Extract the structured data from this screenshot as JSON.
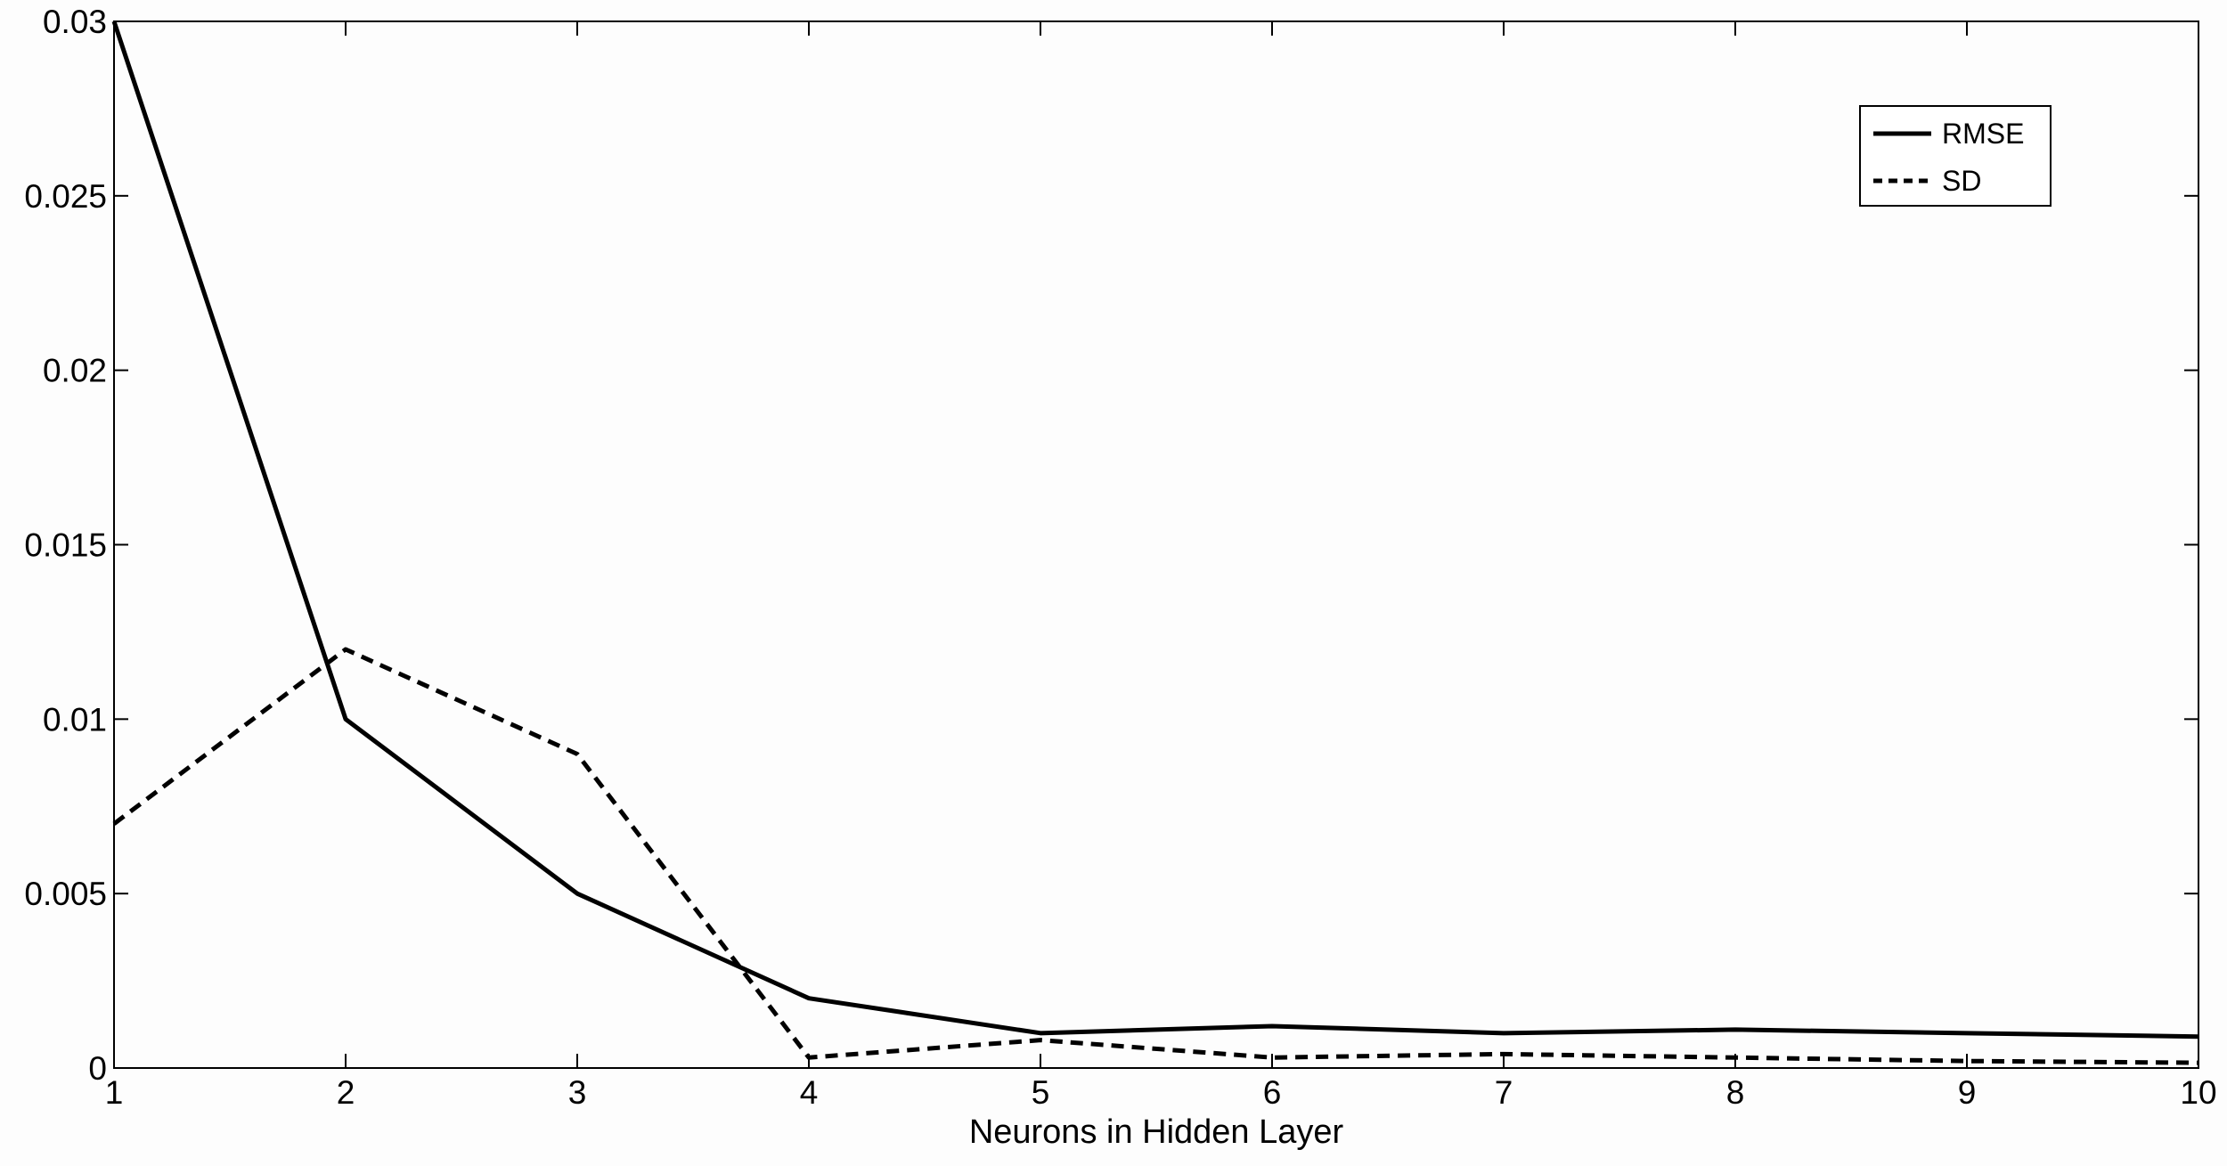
{
  "chart_data": {
    "type": "line",
    "title": "",
    "xlabel": "Neurons in Hidden Layer",
    "ylabel": "",
    "x": [
      1,
      2,
      3,
      4,
      5,
      6,
      7,
      8,
      9,
      10
    ],
    "xlim": [
      1,
      10
    ],
    "ylim": [
      0,
      0.03
    ],
    "xticks": [
      "1",
      "2",
      "3",
      "4",
      "5",
      "6",
      "7",
      "8",
      "9",
      "10"
    ],
    "yticks": [
      "0",
      "0.005",
      "0.01",
      "0.015",
      "0.02",
      "0.025",
      "0.03"
    ],
    "grid": false,
    "legend_position": "top-right",
    "series": [
      {
        "name": "RMSE",
        "line_style": "solid",
        "color": "#000000",
        "values": [
          0.03,
          0.01,
          0.005,
          0.002,
          0.001,
          0.0012,
          0.001,
          0.0011,
          0.001,
          0.0009
        ]
      },
      {
        "name": "SD",
        "line_style": "dashed",
        "color": "#000000",
        "values": [
          0.007,
          0.012,
          0.009,
          0.0003,
          0.0008,
          0.0003,
          0.0004,
          0.0003,
          0.0002,
          0.00015
        ]
      }
    ]
  }
}
